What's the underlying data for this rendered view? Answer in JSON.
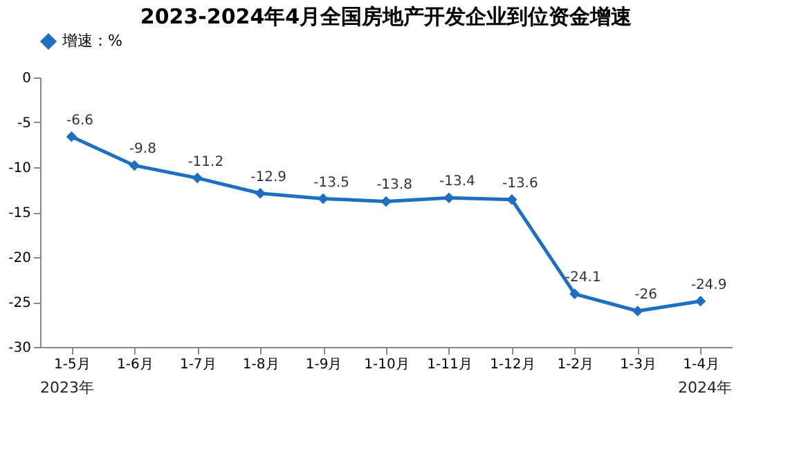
{
  "chart_data": {
    "type": "line",
    "title": "2023-2024年4月全国房地产开发企业到位资金增速",
    "categories": [
      "1-5月",
      "1-6月",
      "1-7月",
      "1-8月",
      "1-9月",
      "1-10月",
      "1-11月",
      "1-12月",
      "1-2月",
      "1-3月",
      "1-4月"
    ],
    "series": [
      {
        "name": "增速：%",
        "color": "#1f6fc0",
        "values": [
          -6.6,
          -9.8,
          -11.2,
          -12.9,
          -13.5,
          -13.8,
          -13.4,
          -13.6,
          -24.1,
          -26,
          -24.9
        ]
      }
    ],
    "ylim": [
      -30,
      0
    ],
    "yticks": [
      -30,
      -25,
      -20,
      -15,
      -10,
      -5,
      0
    ],
    "grid": false,
    "legend": "top",
    "marker": "diamond",
    "line_style": "solid",
    "data_labels": true,
    "annotations": [
      "2023年",
      "2024年"
    ]
  }
}
